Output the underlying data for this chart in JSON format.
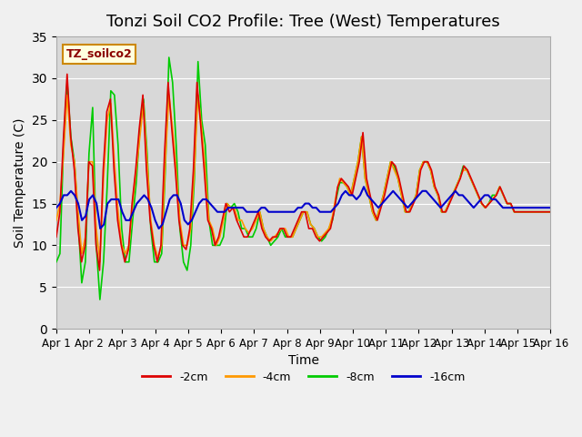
{
  "title": "Tonzi Soil CO2 Profile: Tree (West) Temperatures",
  "xlabel": "Time",
  "ylabel": "Soil Temperature (C)",
  "ylim": [
    0,
    35
  ],
  "yticks": [
    0,
    5,
    10,
    15,
    20,
    25,
    30,
    35
  ],
  "xlim": [
    0,
    360
  ],
  "xtick_labels": [
    "Apr 1",
    "Apr 2",
    "Apr 3",
    "Apr 4",
    "Apr 5",
    "Apr 6",
    "Apr 7",
    "Apr 8",
    "Apr 9",
    "Apr 10",
    "Apr 11",
    "Apr 12",
    "Apr 13",
    "Apr 14",
    "Apr 15",
    "Apr 16"
  ],
  "legend_label": "TZ_soilco2",
  "series_labels": [
    "-2cm",
    "-4cm",
    "-8cm",
    "-16cm"
  ],
  "series_colors": [
    "#dd0000",
    "#ff9900",
    "#00cc00",
    "#0000cc"
  ],
  "background_color": "#e8e8e8",
  "plot_bg_color": "#d8d8d8",
  "title_fontsize": 13,
  "data_2cm": [
    11,
    14,
    23,
    30.5,
    23,
    19,
    12,
    8,
    10,
    20,
    19.5,
    10,
    7,
    19,
    26,
    27.5,
    19,
    13,
    10,
    8,
    9.5,
    15,
    19,
    24,
    28,
    19,
    13,
    10,
    8,
    10,
    21,
    29.5,
    24,
    19,
    13,
    10,
    9.5,
    12,
    19,
    29.5,
    24.5,
    19,
    13,
    12,
    10,
    11,
    13,
    15,
    14,
    14.5,
    13,
    12,
    11,
    11,
    12,
    13,
    14,
    12,
    11,
    10.5,
    11,
    11,
    12,
    12,
    11,
    11,
    12,
    13,
    14,
    14,
    12,
    12,
    11,
    10.5,
    11,
    11.5,
    12,
    14,
    17,
    18,
    17.5,
    17,
    16,
    18,
    20,
    23.5,
    18,
    16,
    14,
    13,
    14.5,
    16,
    18,
    20,
    19.5,
    18,
    16,
    14,
    14,
    15,
    16,
    19,
    20,
    20,
    19,
    17,
    16,
    14,
    14,
    15,
    16,
    17,
    18,
    19.5,
    19,
    18,
    17,
    16,
    15,
    14.5,
    15,
    15.5,
    16,
    17,
    16,
    15,
    15,
    14,
    14,
    14,
    14,
    14,
    14,
    14,
    14,
    14,
    14,
    14
  ],
  "data_4cm": [
    13,
    15,
    21,
    28,
    22,
    20,
    14,
    9,
    11,
    20,
    20,
    12,
    8,
    18,
    25,
    27,
    20,
    14,
    10,
    9,
    10,
    15,
    19,
    23,
    27,
    20,
    13,
    10,
    8.5,
    10,
    20,
    28,
    24,
    19,
    13,
    10,
    10,
    12,
    19,
    28,
    24,
    19,
    13,
    12,
    10,
    11,
    13,
    15,
    14.5,
    14.5,
    13,
    13,
    12,
    11.5,
    12,
    13,
    14,
    12,
    11,
    10.5,
    11,
    11.5,
    12,
    12,
    11,
    11,
    12,
    13,
    14,
    14,
    12.5,
    12,
    11,
    11,
    11.5,
    12,
    13.5,
    16,
    18,
    17.5,
    17,
    16,
    18,
    20,
    23,
    18,
    16,
    14,
    13,
    14.5,
    16,
    18,
    20,
    19,
    18,
    16,
    14,
    14,
    15,
    16,
    19,
    20,
    20,
    19,
    17,
    16,
    14,
    14,
    15,
    16,
    17,
    18,
    19,
    19,
    18,
    17,
    16,
    15,
    14.5,
    15,
    15.5,
    16,
    17,
    16,
    15,
    15,
    14,
    14,
    14,
    14,
    14,
    14,
    14,
    14,
    14,
    14,
    14
  ],
  "data_8cm": [
    8,
    9,
    22,
    29.5,
    23,
    20,
    13,
    5.5,
    8,
    21,
    26.5,
    10,
    3.5,
    8,
    17,
    28.5,
    28,
    22,
    12,
    8,
    8,
    13,
    17.5,
    24,
    27.5,
    21,
    12,
    8,
    8,
    9,
    19,
    32.5,
    29.5,
    22,
    12,
    8,
    7,
    10,
    18,
    32,
    25,
    22,
    13,
    10,
    10,
    10,
    11,
    15,
    14.5,
    15,
    14,
    12,
    12,
    11,
    11,
    12,
    14,
    12,
    11,
    10,
    10.5,
    11,
    12,
    11,
    11,
    11,
    12,
    13,
    14,
    14,
    12.5,
    12,
    11,
    10.5,
    11,
    12,
    13,
    15.5,
    17.5,
    17.5,
    17,
    16,
    18,
    20,
    23,
    18,
    16,
    14,
    13,
    14.5,
    16,
    18,
    20,
    19.5,
    18,
    16,
    14,
    14,
    15,
    16,
    19,
    20,
    20,
    19,
    17,
    16,
    14,
    14,
    15,
    16,
    17,
    18,
    19.5,
    19,
    18,
    17,
    16,
    15,
    14.5,
    15,
    16,
    16,
    17,
    16,
    15,
    15,
    14,
    14,
    14,
    14,
    14,
    14,
    14,
    14,
    14,
    14,
    14
  ],
  "data_16cm": [
    14.5,
    15,
    16,
    16,
    16.5,
    16,
    15,
    13,
    13.5,
    15.5,
    16,
    15,
    12,
    12.5,
    15,
    15.5,
    15.5,
    15.5,
    14,
    13,
    13,
    14,
    15,
    15.5,
    16,
    15.5,
    14.5,
    13,
    12,
    12.5,
    14,
    15.5,
    16,
    16,
    15,
    13,
    12.5,
    13,
    14,
    15,
    15.5,
    15.5,
    15,
    14.5,
    14,
    14,
    14,
    14.5,
    14.5,
    14.5,
    14.5,
    14.5,
    14,
    14,
    14,
    14,
    14.5,
    14.5,
    14,
    14,
    14,
    14,
    14,
    14,
    14,
    14,
    14.5,
    14.5,
    15,
    15,
    14.5,
    14.5,
    14,
    14,
    14,
    14,
    14.5,
    15,
    16,
    16.5,
    16,
    16,
    15.5,
    16,
    17,
    16,
    15.5,
    15,
    14.5,
    15,
    15.5,
    16,
    16.5,
    16,
    15.5,
    15,
    14.5,
    15,
    15.5,
    16,
    16.5,
    16.5,
    16,
    15.5,
    15,
    14.5,
    15,
    15.5,
    16,
    16.5,
    16,
    16,
    15.5,
    15,
    14.5,
    15,
    15.5,
    16,
    16,
    15.5,
    15.5,
    15,
    14.5,
    14.5,
    14.5,
    14.5,
    14.5,
    14.5,
    14.5,
    14.5,
    14.5,
    14.5,
    14.5,
    14.5,
    14.5,
    14.5
  ]
}
